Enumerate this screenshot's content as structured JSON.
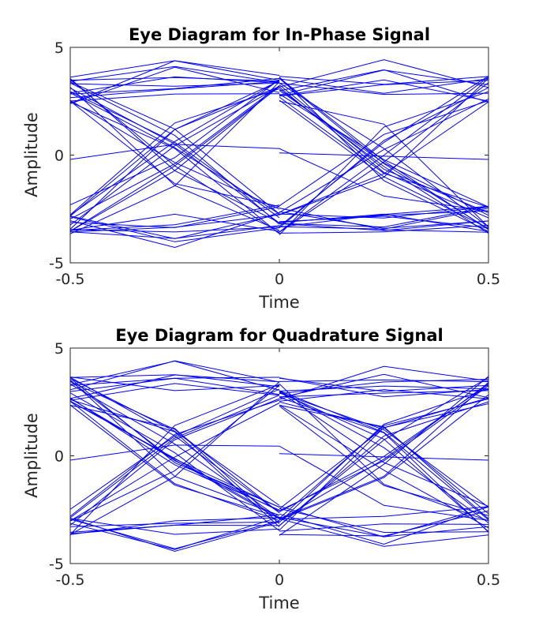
{
  "chart_data": [
    {
      "type": "line",
      "title": "Eye Diagram for In-Phase Signal",
      "xlabel": "Time",
      "ylabel": "Amplitude",
      "xlim": [
        -0.5,
        0.5
      ],
      "ylim": [
        -5,
        5
      ],
      "xticks": [
        -0.5,
        0,
        0.5
      ],
      "xtick_labels": [
        "-0.5",
        "0",
        "0.5"
      ],
      "yticks": [
        -5,
        0,
        5
      ],
      "ytick_labels": [
        "-5",
        "0",
        "5"
      ],
      "grid": false,
      "legend": "none",
      "line_color": "#0000ff",
      "symbol_levels": [
        -3,
        3
      ],
      "symbol_times": [
        -0.5,
        0,
        0.5
      ],
      "transition_times": [
        -0.25,
        0.25
      ],
      "peak_amplitude": 4.6,
      "trace_count_per_segment": 40,
      "outlier_traces": [
        {
          "x": [
            -0.5,
            -0.25,
            0,
            0.25,
            0.5
          ],
          "y": [
            -0.2,
            0.5,
            0.3,
            -1.9,
            -2.6
          ]
        },
        {
          "x": [
            0,
            0.25,
            0.5
          ],
          "y": [
            0.1,
            -0.05,
            -0.2
          ]
        }
      ]
    },
    {
      "type": "line",
      "title": "Eye Diagram for Quadrature Signal",
      "xlabel": "Time",
      "ylabel": "Amplitude",
      "xlim": [
        -0.5,
        0.5
      ],
      "ylim": [
        -5,
        5
      ],
      "xticks": [
        -0.5,
        0,
        0.5
      ],
      "xtick_labels": [
        "-0.5",
        "0",
        "0.5"
      ],
      "yticks": [
        -5,
        0,
        5
      ],
      "ytick_labels": [
        "-5",
        "0",
        "5"
      ],
      "grid": false,
      "legend": "none",
      "line_color": "#0000ff",
      "symbol_levels": [
        -3,
        3
      ],
      "symbol_times": [
        -0.5,
        0,
        0.5
      ],
      "transition_times": [
        -0.25,
        0.25
      ],
      "peak_amplitude": 4.6,
      "trace_count_per_segment": 40,
      "outlier_traces": [
        {
          "x": [
            -0.5,
            -0.25,
            0,
            0.25,
            0.5
          ],
          "y": [
            -0.2,
            0.5,
            0.45,
            -2.3,
            -3.0
          ]
        },
        {
          "x": [
            0,
            0.25,
            0.5
          ],
          "y": [
            0.1,
            -0.05,
            -0.2
          ]
        }
      ]
    }
  ]
}
